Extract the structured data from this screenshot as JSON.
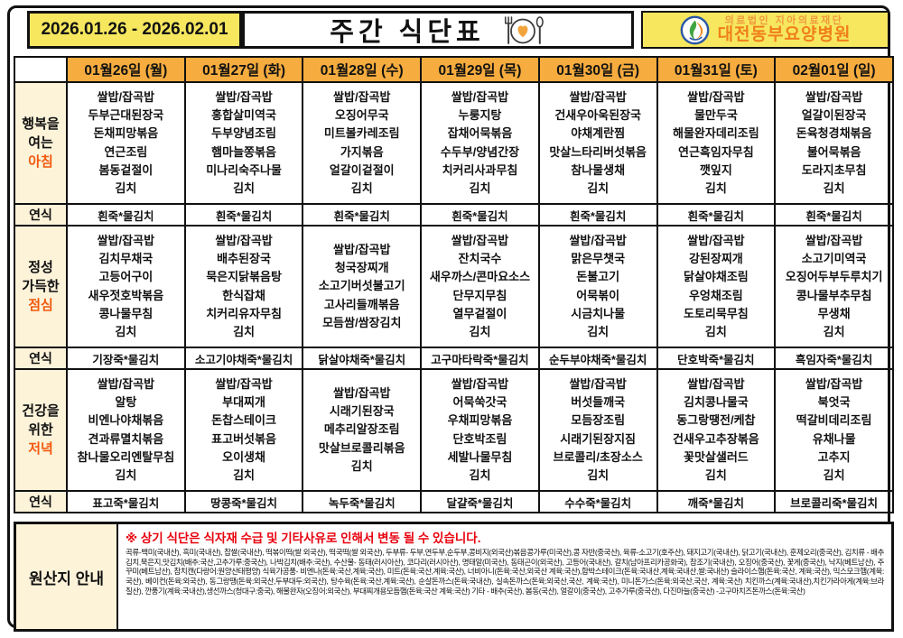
{
  "header": {
    "date_range": "2026.01.26 - 2026.02.01",
    "title": "주간 식단표",
    "org_small": "의료법인 지아의료재단",
    "org_name": "대전동부요양병원"
  },
  "colors": {
    "yellow_box": "#F6E75F",
    "day_header_orange": "#F6AC3E",
    "label_cream": "#FCF3D9",
    "meal_accent": "#F2590F",
    "brand_orange": "#F07F1A",
    "notice_red": "#E8000D"
  },
  "days": [
    "01월26일 (월)",
    "01월27일 (화)",
    "01월28일 (수)",
    "01월29일 (목)",
    "01월30일 (금)",
    "01월31일 (토)",
    "02월01일 (일)"
  ],
  "sections": [
    {
      "label_lines": [
        "행복을",
        "여는"
      ],
      "label_accent": "아침",
      "menus": [
        [
          "쌀밥/잡곡밥",
          "두부근대된장국",
          "돈채피망볶음",
          "연근조림",
          "봄동겉절이",
          "김치"
        ],
        [
          "쌀밥/잡곡밥",
          "홍합살미역국",
          "두부양념조림",
          "햄마늘쫑볶음",
          "미나리숙주나물",
          "김치"
        ],
        [
          "쌀밥/잡곡밥",
          "오징어무국",
          "미트볼카레조림",
          "가지볶음",
          "얼갈이겉절이",
          "김치"
        ],
        [
          "쌀밥/잡곡밥",
          "누룽지탕",
          "잡채어묵볶음",
          "수두부/양념간장",
          "치커리사과무침",
          "김치"
        ],
        [
          "쌀밥/잡곡밥",
          "건새우아욱된장국",
          "야채계란찜",
          "맛살느타리버섯볶음",
          "참나물생채",
          "김치"
        ],
        [
          "쌀밥/잡곡밥",
          "물만두국",
          "해물완자데리조림",
          "연근흑임자무침",
          "깻잎지",
          "김치"
        ],
        [
          "쌀밥/잡곡밥",
          "얼갈이된장국",
          "돈육청경채볶음",
          "불어묵볶음",
          "도라지초무침",
          "김치"
        ]
      ],
      "soft_label": "연식",
      "soft": [
        "흰죽*물김치",
        "흰죽*물김치",
        "흰죽*물김치",
        "흰죽*물김치",
        "흰죽*물김치",
        "흰죽*물김치",
        "흰죽*물김치"
      ]
    },
    {
      "label_lines": [
        "정성",
        "가득한"
      ],
      "label_accent": "점심",
      "menus": [
        [
          "쌀밥/잡곡밥",
          "김치무채국",
          "고등어구이",
          "새우젓호박볶음",
          "콩나물무침",
          "김치"
        ],
        [
          "쌀밥/잡곡밥",
          "배추된장국",
          "묵은지닭볶음탕",
          "한식잡채",
          "치커리유자무침",
          "김치"
        ],
        [
          "쌀밥/잡곡밥",
          "청국장찌개",
          "소고기버섯불고기",
          "고사리들깨볶음",
          "모듬쌈/쌈장김치"
        ],
        [
          "쌀밥/잡곡밥",
          "잔치국수",
          "새우까스/콘마요소스",
          "단무지무침",
          "열무겉절이",
          "김치"
        ],
        [
          "쌀밥/잡곡밥",
          "맑은무챗국",
          "돈불고기",
          "어묵볶이",
          "시금치나물",
          "김치"
        ],
        [
          "쌀밥/잡곡밥",
          "강된장찌개",
          "닭살야채조림",
          "우엉채조림",
          "도토리묵무침",
          "김치"
        ],
        [
          "쌀밥/잡곡밥",
          "소고기미역국",
          "오징어두부두루치기",
          "콩나물부추무침",
          "무생채",
          "김치"
        ]
      ],
      "soft_label": "연식",
      "soft": [
        "기장죽*물김치",
        "소고기야채죽*물김치",
        "닭살야채죽*물김치",
        "고구마타락죽*물김치",
        "순두부야채죽*물김치",
        "단호박죽*물김치",
        "흑임자죽*물김치"
      ]
    },
    {
      "label_lines": [
        "건강을",
        "위한"
      ],
      "label_accent": "저녁",
      "menus": [
        [
          "쌀밥/잡곡밥",
          "알탕",
          "비엔나야채볶음",
          "견과류멸치볶음",
          "참나물오리엔탈무침",
          "김치"
        ],
        [
          "쌀밥/잡곡밥",
          "부대찌개",
          "돈찹스테이크",
          "표고버섯볶음",
          "오이생채",
          "김치"
        ],
        [
          "쌀밥/잡곡밥",
          "시래기된장국",
          "메추리알장조림",
          "맛살브로콜리볶음",
          "김치"
        ],
        [
          "쌀밥/잡곡밥",
          "어묵쑥갓국",
          "우채피망볶음",
          "단호박조림",
          "세발나물무침",
          "김치"
        ],
        [
          "쌀밥/잡곡밥",
          "버섯들깨국",
          "모듬장조림",
          "시래기된장지짐",
          "브로콜리/초장소스",
          "김치"
        ],
        [
          "쌀밥/잡곡밥",
          "김치콩나물국",
          "동그랑땡전/케찹",
          "건새우고추장볶음",
          "꽃맛살샐러드",
          "김치"
        ],
        [
          "쌀밥/잡곡밥",
          "북엇국",
          "떡갈비데리조림",
          "유채나물",
          "고추지",
          "김치"
        ]
      ],
      "soft_label": "연식",
      "soft": [
        "표고죽*물김치",
        "땅콩죽*물김치",
        "녹두죽*물김치",
        "달걀죽*물김치",
        "수수죽*물김치",
        "깨죽*물김치",
        "브로콜리죽*물김치"
      ]
    }
  ],
  "footer": {
    "origin_label": "원산지 안내",
    "notice": "※ 상기 식단은 식자재 수급 및 기타사유로 인해서 변동 될 수 있습니다.",
    "origin_text": "곡류-백미(국내산), 흑미(국내산), 찹쌀(국내산), 떡볶이떡(쌀 외국산), 떡국떡(쌀 외국산), 두부류- 두부,연두부,순두부,콩비지(외국산)볶음콩가루(미국산),콩 자반(중국산), 육류-소고기(호주산), 돼지고기(국내산), 닭고기(국내산), 훈제오리(중국산), 김치류 - 배추김치,묵은지,맛김치(배추:국산,고추가루:중국산), 나박김치(배추:국산), 수산물- 동태(러시아산), 코다리(러시아산), 명태알(미국산), 동태곤이(외국산), 고등어(국내산), 갈치(남아프리카공화국), 참조기(국내산), 오징어(중국산), 꽃게(중국산), 낙지(베트남산), 주꾸미(베트남산), 참치캔(다랑어:원양산태평양) 식육가공품- 비엔나(돈육:국산,계육:국산), 미트(돈육:국산,계육:국산), 너비아니(돈육:국산,외국산 계육:국산),함박스테이크(돈육:국내산,계육:국내산,쌀:국내산) 슬라이스햄(돈육:국산, 계육:국산), 믹스모크햄(계육:국산), 베이컨(돈육:외국산), 동그랑땡(돈육:외국산,두부대두:외국산), 탕수육(돈육:국산,계육:국산), 순살돈까스(돈육:국내산), 실속돈까스(돈육:외국산,국산, 계육:국산), 미니돈가스(돈육:외국산,국산, 계육:국산) 치킨까스(계육:국내산),치킨가라아게(계육:브라질산), 깐풍기(계육:국내산),생선까스(청대구:중국), 해물완자(오징어:외국산), 부대찌개용모듬햄(돈육:국산 계육:국산) 기타 - 배추(국산), 봄동(국산), 얼갈이(중국산), 고추가루(중국산), 다진마늘(중국산) -고구마치즈돈까스(돈육:국산)"
  }
}
